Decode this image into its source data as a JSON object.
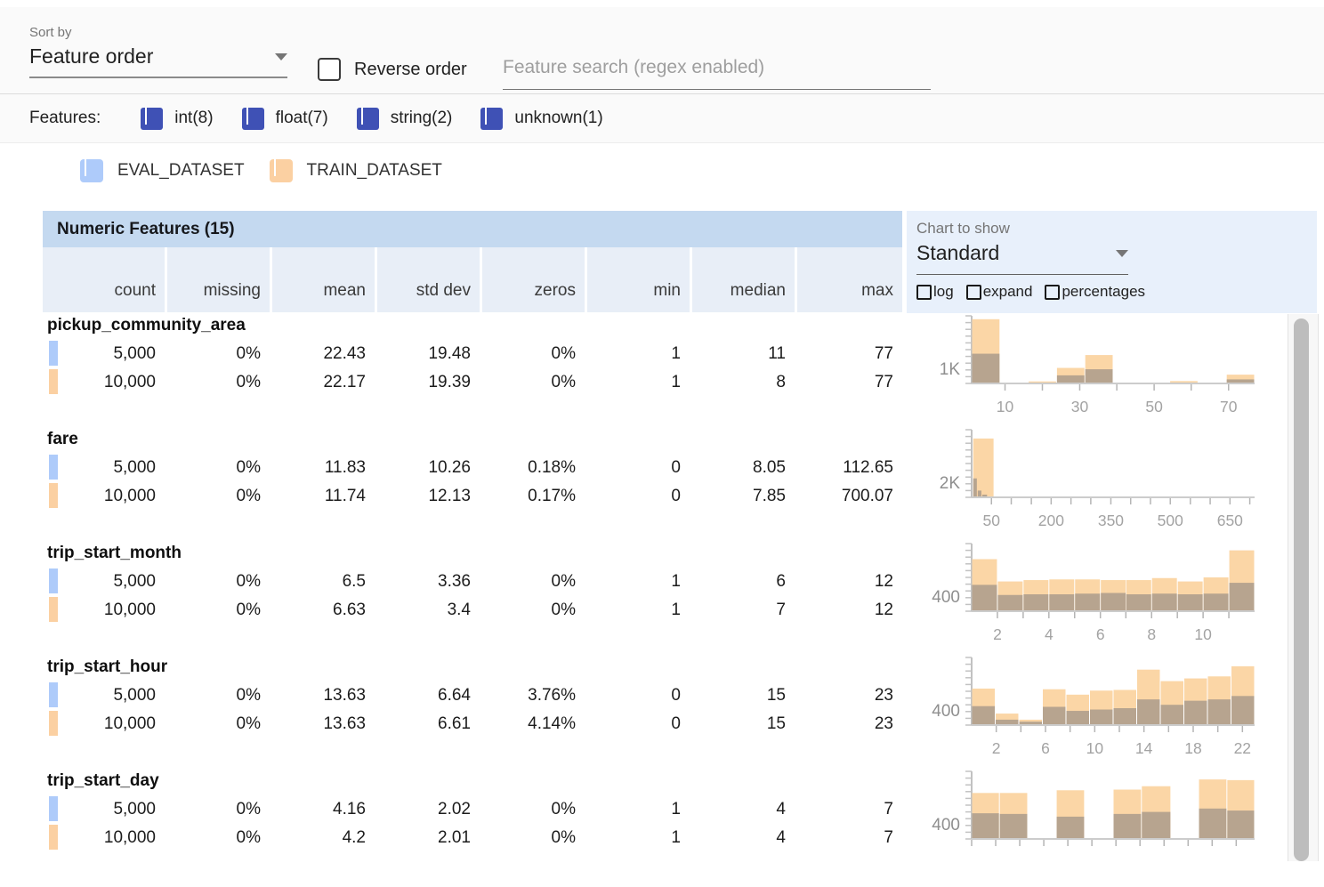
{
  "toolbar": {
    "sort_by_label": "Sort by",
    "sort_value": "Feature order",
    "reverse_label": "Reverse order",
    "search_placeholder": "Feature search (regex enabled)"
  },
  "features_bar": {
    "label": "Features:",
    "items": [
      {
        "label": "int(8)",
        "checked": true
      },
      {
        "label": "float(7)",
        "checked": true
      },
      {
        "label": "string(2)",
        "checked": true
      },
      {
        "label": "unknown(1)",
        "checked": true
      }
    ],
    "checkbox_color": "#3f51b5"
  },
  "datasets": [
    {
      "name": "EVAL_DATASET",
      "color": "#aecbfa",
      "checked": true
    },
    {
      "name": "TRAIN_DATASET",
      "color": "#fbd0a2",
      "checked": true
    }
  ],
  "chart_controls": {
    "label": "Chart to show",
    "value": "Standard",
    "options": [
      {
        "label": "log",
        "checked": false
      },
      {
        "label": "expand",
        "checked": false
      },
      {
        "label": "percentages",
        "checked": false
      }
    ]
  },
  "table": {
    "title": "Numeric Features (15)",
    "columns": [
      "count",
      "missing",
      "mean",
      "std dev",
      "zeros",
      "min",
      "median",
      "max"
    ],
    "features": [
      {
        "name": "pickup_community_area",
        "rows": [
          [
            "5,000",
            "0%",
            "22.43",
            "19.48",
            "0%",
            "1",
            "11",
            "77"
          ],
          [
            "10,000",
            "0%",
            "22.17",
            "19.39",
            "0%",
            "1",
            "8",
            "77"
          ]
        ]
      },
      {
        "name": "fare",
        "rows": [
          [
            "5,000",
            "0%",
            "11.83",
            "10.26",
            "0.18%",
            "0",
            "8.05",
            "112.65"
          ],
          [
            "10,000",
            "0%",
            "11.74",
            "12.13",
            "0.17%",
            "0",
            "7.85",
            "700.07"
          ]
        ]
      },
      {
        "name": "trip_start_month",
        "rows": [
          [
            "5,000",
            "0%",
            "6.5",
            "3.36",
            "0%",
            "1",
            "6",
            "12"
          ],
          [
            "10,000",
            "0%",
            "6.63",
            "3.4",
            "0%",
            "1",
            "7",
            "12"
          ]
        ]
      },
      {
        "name": "trip_start_hour",
        "rows": [
          [
            "5,000",
            "0%",
            "13.63",
            "6.64",
            "3.76%",
            "0",
            "15",
            "23"
          ],
          [
            "10,000",
            "0%",
            "13.63",
            "6.61",
            "4.14%",
            "0",
            "15",
            "23"
          ]
        ]
      },
      {
        "name": "trip_start_day",
        "rows": [
          [
            "5,000",
            "0%",
            "4.16",
            "2.02",
            "0%",
            "1",
            "4",
            "7"
          ],
          [
            "10,000",
            "0%",
            "4.2",
            "2.01",
            "0%",
            "1",
            "4",
            "7"
          ]
        ]
      }
    ]
  },
  "chart_data": [
    {
      "type": "bar",
      "feature": "pickup_community_area",
      "ylabel": "1K",
      "xticks": [
        {
          "v": "10",
          "f": 0.118
        },
        {
          "v": "",
          "f": 0.25
        },
        {
          "v": "30",
          "f": 0.382
        },
        {
          "v": "",
          "f": 0.513
        },
        {
          "v": "50",
          "f": 0.645
        },
        {
          "v": "",
          "f": 0.776
        },
        {
          "v": "70",
          "f": 0.908
        }
      ],
      "bars": [
        {
          "x": 0.0,
          "w": 0.1,
          "t": 0.95,
          "e": 0.44
        },
        {
          "x": 0.1,
          "w": 0.1,
          "t": 0.012,
          "e": 0.006
        },
        {
          "x": 0.2,
          "w": 0.1,
          "t": 0.03,
          "e": 0.012
        },
        {
          "x": 0.3,
          "w": 0.1,
          "t": 0.23,
          "e": 0.12
        },
        {
          "x": 0.4,
          "w": 0.1,
          "t": 0.42,
          "e": 0.21
        },
        {
          "x": 0.5,
          "w": 0.1,
          "t": 0.012,
          "e": 0.005
        },
        {
          "x": 0.6,
          "w": 0.1,
          "t": 0.008,
          "e": 0.003
        },
        {
          "x": 0.7,
          "w": 0.1,
          "t": 0.035,
          "e": 0.01
        },
        {
          "x": 0.8,
          "w": 0.1,
          "t": 0.012,
          "e": 0.005
        },
        {
          "x": 0.9,
          "w": 0.1,
          "t": 0.13,
          "e": 0.06
        }
      ]
    },
    {
      "type": "bar",
      "feature": "fare",
      "ylabel": "2K",
      "xticks": [
        {
          "v": "50",
          "f": 0.07
        },
        {
          "v": "",
          "f": 0.14
        },
        {
          "v": "",
          "f": 0.211
        },
        {
          "v": "200",
          "f": 0.281
        },
        {
          "v": "",
          "f": 0.351
        },
        {
          "v": "",
          "f": 0.421
        },
        {
          "v": "350",
          "f": 0.492
        },
        {
          "v": "",
          "f": 0.562
        },
        {
          "v": "",
          "f": 0.632
        },
        {
          "v": "500",
          "f": 0.702
        },
        {
          "v": "",
          "f": 0.773
        },
        {
          "v": "",
          "f": 0.843
        },
        {
          "v": "650",
          "f": 0.913
        },
        {
          "v": "",
          "f": 0.983
        }
      ],
      "bars": [
        {
          "x": 0.004,
          "w": 0.075,
          "t": 0.87,
          "e": 0.0
        },
        {
          "x": 0.004,
          "w": 0.016,
          "t": 0.0,
          "e": 0.28
        },
        {
          "x": 0.02,
          "w": 0.016,
          "t": 0.0,
          "e": 0.1
        },
        {
          "x": 0.036,
          "w": 0.02,
          "t": 0.0,
          "e": 0.04
        }
      ]
    },
    {
      "type": "bar",
      "feature": "trip_start_month",
      "ylabel": "400",
      "xticks": [
        {
          "v": "2",
          "f": 0.091
        },
        {
          "v": "",
          "f": 0.182
        },
        {
          "v": "4",
          "f": 0.273
        },
        {
          "v": "",
          "f": 0.364
        },
        {
          "v": "6",
          "f": 0.455
        },
        {
          "v": "",
          "f": 0.545
        },
        {
          "v": "8",
          "f": 0.636
        },
        {
          "v": "",
          "f": 0.727
        },
        {
          "v": "10",
          "f": 0.818
        },
        {
          "v": "",
          "f": 0.909
        }
      ],
      "bars": [
        {
          "x": 0.0,
          "w": 0.091,
          "t": 0.77,
          "e": 0.39
        },
        {
          "x": 0.091,
          "w": 0.091,
          "t": 0.44,
          "e": 0.24
        },
        {
          "x": 0.182,
          "w": 0.091,
          "t": 0.46,
          "e": 0.25
        },
        {
          "x": 0.273,
          "w": 0.091,
          "t": 0.47,
          "e": 0.25
        },
        {
          "x": 0.364,
          "w": 0.091,
          "t": 0.47,
          "e": 0.26
        },
        {
          "x": 0.455,
          "w": 0.091,
          "t": 0.46,
          "e": 0.27
        },
        {
          "x": 0.545,
          "w": 0.091,
          "t": 0.46,
          "e": 0.25
        },
        {
          "x": 0.636,
          "w": 0.091,
          "t": 0.49,
          "e": 0.26
        },
        {
          "x": 0.727,
          "w": 0.091,
          "t": 0.44,
          "e": 0.25
        },
        {
          "x": 0.818,
          "w": 0.091,
          "t": 0.5,
          "e": 0.26
        },
        {
          "x": 0.909,
          "w": 0.091,
          "t": 0.9,
          "e": 0.42
        }
      ]
    },
    {
      "type": "bar",
      "feature": "trip_start_hour",
      "ylabel": "400",
      "xticks": [
        {
          "v": "2",
          "f": 0.087
        },
        {
          "v": "",
          "f": 0.174
        },
        {
          "v": "6",
          "f": 0.261
        },
        {
          "v": "",
          "f": 0.348
        },
        {
          "v": "10",
          "f": 0.435
        },
        {
          "v": "",
          "f": 0.522
        },
        {
          "v": "14",
          "f": 0.609
        },
        {
          "v": "",
          "f": 0.696
        },
        {
          "v": "18",
          "f": 0.783
        },
        {
          "v": "",
          "f": 0.87
        },
        {
          "v": "22",
          "f": 0.957
        }
      ],
      "bars": [
        {
          "x": 0.0,
          "w": 0.0833,
          "t": 0.54,
          "e": 0.28
        },
        {
          "x": 0.0833,
          "w": 0.0833,
          "t": 0.17,
          "e": 0.08
        },
        {
          "x": 0.1667,
          "w": 0.0833,
          "t": 0.08,
          "e": 0.05
        },
        {
          "x": 0.25,
          "w": 0.0833,
          "t": 0.53,
          "e": 0.27
        },
        {
          "x": 0.3333,
          "w": 0.0833,
          "t": 0.45,
          "e": 0.21
        },
        {
          "x": 0.4167,
          "w": 0.0833,
          "t": 0.51,
          "e": 0.23
        },
        {
          "x": 0.5,
          "w": 0.0833,
          "t": 0.52,
          "e": 0.25
        },
        {
          "x": 0.5833,
          "w": 0.0833,
          "t": 0.82,
          "e": 0.38
        },
        {
          "x": 0.6667,
          "w": 0.0833,
          "t": 0.65,
          "e": 0.3
        },
        {
          "x": 0.75,
          "w": 0.0833,
          "t": 0.69,
          "e": 0.36
        },
        {
          "x": 0.8333,
          "w": 0.0833,
          "t": 0.72,
          "e": 0.38
        },
        {
          "x": 0.9167,
          "w": 0.0833,
          "t": 0.87,
          "e": 0.43
        }
      ]
    },
    {
      "type": "bar",
      "feature": "trip_start_day",
      "ylabel": "400",
      "xticks": [
        {
          "v": "",
          "f": 0.0
        },
        {
          "v": "",
          "f": 0.085
        },
        {
          "v": "",
          "f": 0.17
        },
        {
          "v": "",
          "f": 0.255
        },
        {
          "v": "",
          "f": 0.34
        },
        {
          "v": "",
          "f": 0.425
        },
        {
          "v": "",
          "f": 0.51
        },
        {
          "v": "",
          "f": 0.595
        },
        {
          "v": "",
          "f": 0.68
        },
        {
          "v": "",
          "f": 0.765
        },
        {
          "v": "",
          "f": 0.85
        },
        {
          "v": "",
          "f": 0.935
        }
      ],
      "bars": [
        {
          "x": 0.0,
          "w": 0.098,
          "t": 0.68,
          "e": 0.38
        },
        {
          "x": 0.098,
          "w": 0.1,
          "t": 0.68,
          "e": 0.37
        },
        {
          "x": 0.299,
          "w": 0.1,
          "t": 0.72,
          "e": 0.33
        },
        {
          "x": 0.5,
          "w": 0.1,
          "t": 0.73,
          "e": 0.37
        },
        {
          "x": 0.6,
          "w": 0.104,
          "t": 0.78,
          "e": 0.4
        },
        {
          "x": 0.802,
          "w": 0.1,
          "t": 0.88,
          "e": 0.45
        },
        {
          "x": 0.902,
          "w": 0.098,
          "t": 0.87,
          "e": 0.42
        }
      ]
    }
  ],
  "chart_colors": {
    "train_bar": "#fbd6a6",
    "overlap_bar": "#b7a48f",
    "eval_bar": "#aecbfa"
  }
}
